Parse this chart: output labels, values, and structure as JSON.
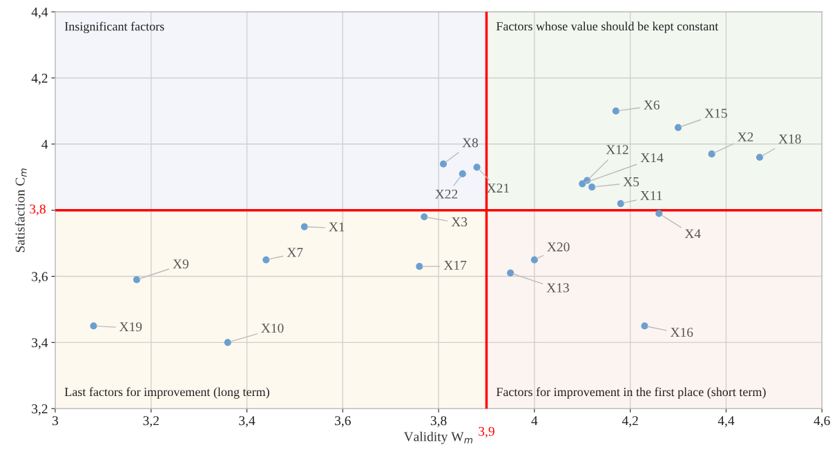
{
  "chart_data": {
    "type": "scatter",
    "xlabel": "Validity W$_{m}$",
    "ylabel": "Satisfaction C$_{m}$",
    "xlim": [
      3,
      4.6
    ],
    "ylim": [
      3.2,
      4.4
    ],
    "xticks": [
      3,
      {
        "value": 3.2,
        "label": "3,2"
      },
      {
        "value": 3.4,
        "label": "3,4"
      },
      {
        "value": 3.6,
        "label": "3,6"
      },
      {
        "value": 3.8,
        "label": "3,8"
      },
      4,
      {
        "value": 4.2,
        "label": "4,2"
      },
      {
        "value": 4.4,
        "label": "4,4"
      },
      {
        "value": 4.6,
        "label": "4,6"
      }
    ],
    "yticks": [
      {
        "value": 3.2,
        "label": "3,2"
      },
      {
        "value": 3.4,
        "label": "3,4"
      },
      {
        "value": 3.6,
        "label": "3,6"
      },
      {
        "value": 3.8,
        "label": null
      },
      4,
      {
        "value": 4.2,
        "label": "4,2"
      },
      {
        "value": 4.4,
        "label": "4,4"
      }
    ],
    "grid": true,
    "marker": "circle",
    "series": [
      {
        "color": "#6b9fd0",
        "x": [
          4.17,
          4.3,
          4.37,
          4.47,
          3.81,
          3.85,
          3.88,
          4.11,
          4.1,
          4.12,
          4.18,
          4.26,
          3.77,
          4.0,
          3.76,
          3.95,
          3.52,
          3.44,
          3.17,
          3.08,
          3.36,
          4.23
        ],
        "values": [
          4.1,
          4.05,
          3.97,
          3.96,
          3.94,
          3.91,
          3.93,
          3.89,
          3.88,
          3.87,
          3.82,
          3.79,
          3.78,
          3.65,
          3.63,
          3.61,
          3.75,
          3.65,
          3.59,
          3.45,
          3.4,
          3.45
        ]
      }
    ],
    "ref_lines": [
      {
        "axis": "x",
        "value": 3.9,
        "label": "3,9",
        "color": "#ff0000"
      },
      {
        "axis": "y",
        "value": 3.8,
        "label": "3,8",
        "color": "#ff0000"
      }
    ],
    "annotations": [
      "Insignificant factors",
      "Factors whose value should be kept constant",
      "Last factors for improvement (long term)",
      "Factors for improvement in the first place (short term)",
      {
        "text": "X6",
        "x": 4.17,
        "y": 4.1
      },
      {
        "text": "X15",
        "x": 4.3,
        "y": 4.05
      },
      {
        "text": "X2",
        "x": 4.37,
        "y": 3.97
      },
      {
        "text": "X18",
        "x": 4.47,
        "y": 3.96
      },
      {
        "text": "X8",
        "x": 3.81,
        "y": 3.94
      },
      {
        "text": "X22",
        "x": 3.85,
        "y": 3.91
      },
      {
        "text": "X21",
        "x": 3.88,
        "y": 3.93
      },
      {
        "text": "X12",
        "x": 4.11,
        "y": 3.89
      },
      {
        "text": "X14",
        "x": 4.1,
        "y": 3.88
      },
      {
        "text": "X5",
        "x": 4.12,
        "y": 3.87
      },
      {
        "text": "X11",
        "x": 4.18,
        "y": 3.82
      },
      {
        "text": "X4",
        "x": 4.26,
        "y": 3.79
      },
      {
        "text": "X3",
        "x": 3.77,
        "y": 3.78
      },
      {
        "text": "X20",
        "x": 4.0,
        "y": 3.65
      },
      {
        "text": "X17",
        "x": 3.76,
        "y": 3.63
      },
      {
        "text": "X13",
        "x": 3.95,
        "y": 3.61
      },
      {
        "text": "X1",
        "x": 3.52,
        "y": 3.75
      },
      {
        "text": "X7",
        "x": 3.44,
        "y": 3.65
      },
      {
        "text": "X9",
        "x": 3.17,
        "y": 3.59
      },
      {
        "text": "X19",
        "x": 3.08,
        "y": 3.45
      },
      {
        "text": "X10",
        "x": 3.36,
        "y": 3.4
      },
      {
        "text": "X16",
        "x": 4.23,
        "y": 3.45
      }
    ]
  }
}
